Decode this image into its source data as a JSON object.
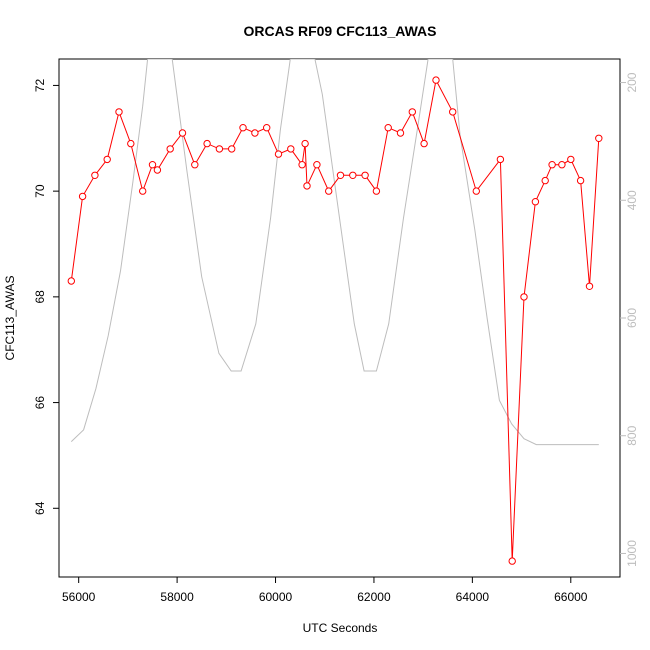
{
  "chart_data": {
    "type": "line",
    "title": "ORCAS RF09 CFC113_AWAS",
    "xlabel": "UTC Seconds",
    "ylabel": "CFC113_AWAS",
    "xlim": [
      55600,
      67000
    ],
    "ylim": [
      62.7,
      72.5
    ],
    "xticks": [
      56000,
      58000,
      60000,
      62000,
      64000,
      66000
    ],
    "xtick_labels": [
      "56000",
      "58000",
      "60000",
      "62000",
      "64000",
      "66000"
    ],
    "yticks": [
      64,
      66,
      68,
      70,
      72
    ],
    "ytick_labels": [
      "64",
      "66",
      "68",
      "70",
      "72"
    ],
    "y2lim": [
      1040,
      160
    ],
    "y2ticks": [
      200,
      400,
      600,
      800,
      1000
    ],
    "y2tick_labels": [
      "200",
      "400",
      "600",
      "800",
      "1000"
    ],
    "grid": false,
    "series": [
      {
        "color": "#ff0000",
        "axis": "left",
        "marker": "open-circle",
        "x": [
          55850,
          56080,
          56330,
          56580,
          56820,
          57060,
          57300,
          57500,
          57600,
          57860,
          58110,
          58360,
          58610,
          58860,
          59110,
          59340,
          59580,
          59820,
          60060,
          60310,
          60540,
          60600,
          60640,
          60840,
          61080,
          61320,
          61570,
          61820,
          62050,
          62290,
          62540,
          62780,
          63020,
          63260,
          63600,
          64080,
          64570,
          64810,
          65050,
          65280,
          65480,
          65620,
          65820,
          66000,
          66200,
          66380,
          66570
        ],
        "y": [
          68.3,
          69.9,
          70.3,
          70.6,
          71.5,
          70.9,
          70.0,
          70.5,
          70.4,
          70.8,
          71.1,
          70.5,
          70.9,
          70.8,
          70.8,
          71.2,
          71.1,
          71.2,
          70.7,
          70.8,
          70.5,
          70.9,
          70.1,
          70.5,
          70.0,
          70.3,
          70.3,
          70.3,
          70.0,
          71.2,
          71.1,
          71.5,
          70.9,
          72.1,
          71.5,
          70.0,
          70.6,
          63.0,
          68.0,
          69.8,
          70.2,
          70.5,
          70.5,
          70.6,
          70.2,
          68.2,
          71.0
        ]
      },
      {
        "color": "#bdbdbd",
        "axis": "right",
        "marker": "none",
        "x": [
          55850,
          56100,
          56350,
          56600,
          56850,
          57100,
          57300,
          57400,
          57700,
          57900,
          58200,
          58500,
          58850,
          59100,
          59300,
          59600,
          59900,
          60100,
          60300,
          60450,
          60800,
          60950,
          61300,
          61600,
          61800,
          62050,
          62300,
          62600,
          62900,
          63100,
          63250,
          63600,
          63750,
          64050,
          64300,
          64550,
          64800,
          65050,
          65300,
          65500,
          65800,
          66100,
          66400,
          66570
        ],
        "y": [
          810,
          790,
          720,
          630,
          520,
          370,
          240,
          160,
          160,
          160,
          350,
          530,
          660,
          690,
          690,
          610,
          430,
          280,
          160,
          160,
          160,
          220,
          430,
          610,
          690,
          690,
          610,
          430,
          270,
          160,
          160,
          160,
          290,
          450,
          600,
          740,
          780,
          805,
          815,
          815,
          815,
          815,
          815,
          815
        ]
      }
    ]
  }
}
